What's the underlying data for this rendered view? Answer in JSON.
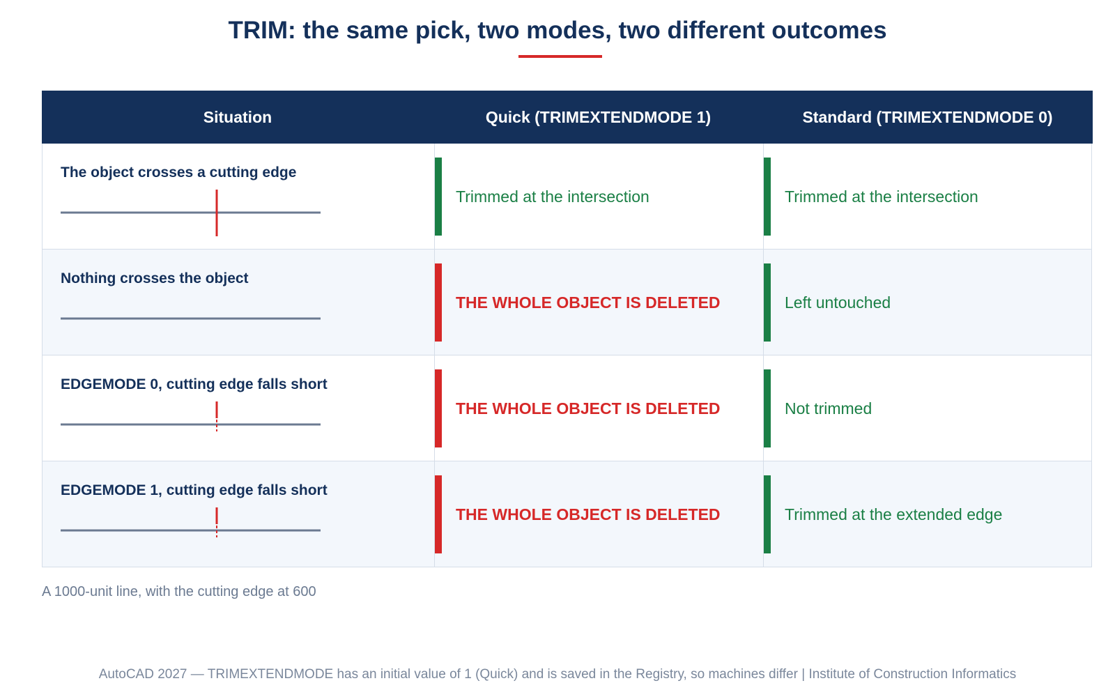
{
  "title": "TRIM: the same pick, two modes, two different outcomes",
  "colors": {
    "navy": "#14305a",
    "accent_red": "#d62828",
    "success_green": "#1a7f45",
    "line_gray": "#6b7a91",
    "row_alt": "#f3f7fc"
  },
  "table": {
    "headers": {
      "situation": "Situation",
      "quick": "Quick (TRIMEXTENDMODE 1)",
      "standard": "Standard (TRIMEXTENDMODE 0)"
    },
    "rows": [
      {
        "situation": "The object crosses a cutting edge",
        "diagram": "crossing-edge",
        "quick": {
          "text": "Trimmed at the intersection",
          "status": "green"
        },
        "standard": {
          "text": "Trimmed at the intersection",
          "status": "green"
        }
      },
      {
        "situation": "Nothing crosses the object",
        "diagram": "no-edge",
        "quick": {
          "text": "THE WHOLE OBJECT IS DELETED",
          "status": "red"
        },
        "standard": {
          "text": "Left untouched",
          "status": "green"
        }
      },
      {
        "situation": "EDGEMODE 0, cutting edge falls short",
        "diagram": "short-edge",
        "quick": {
          "text": "THE WHOLE OBJECT IS DELETED",
          "status": "red"
        },
        "standard": {
          "text": "Not trimmed",
          "status": "green"
        }
      },
      {
        "situation": "EDGEMODE 1, cutting edge falls short",
        "diagram": "short-edge-extended",
        "quick": {
          "text": "THE WHOLE OBJECT IS DELETED",
          "status": "red"
        },
        "standard": {
          "text": "Trimmed at the extended edge",
          "status": "green"
        }
      }
    ]
  },
  "caption": "A 1000-unit line, with the cutting edge at 600",
  "footer": "AutoCAD 2027 — TRIMEXTENDMODE has an initial value of 1 (Quick) and is saved in the Registry, so machines differ | Institute of Construction Informatics"
}
